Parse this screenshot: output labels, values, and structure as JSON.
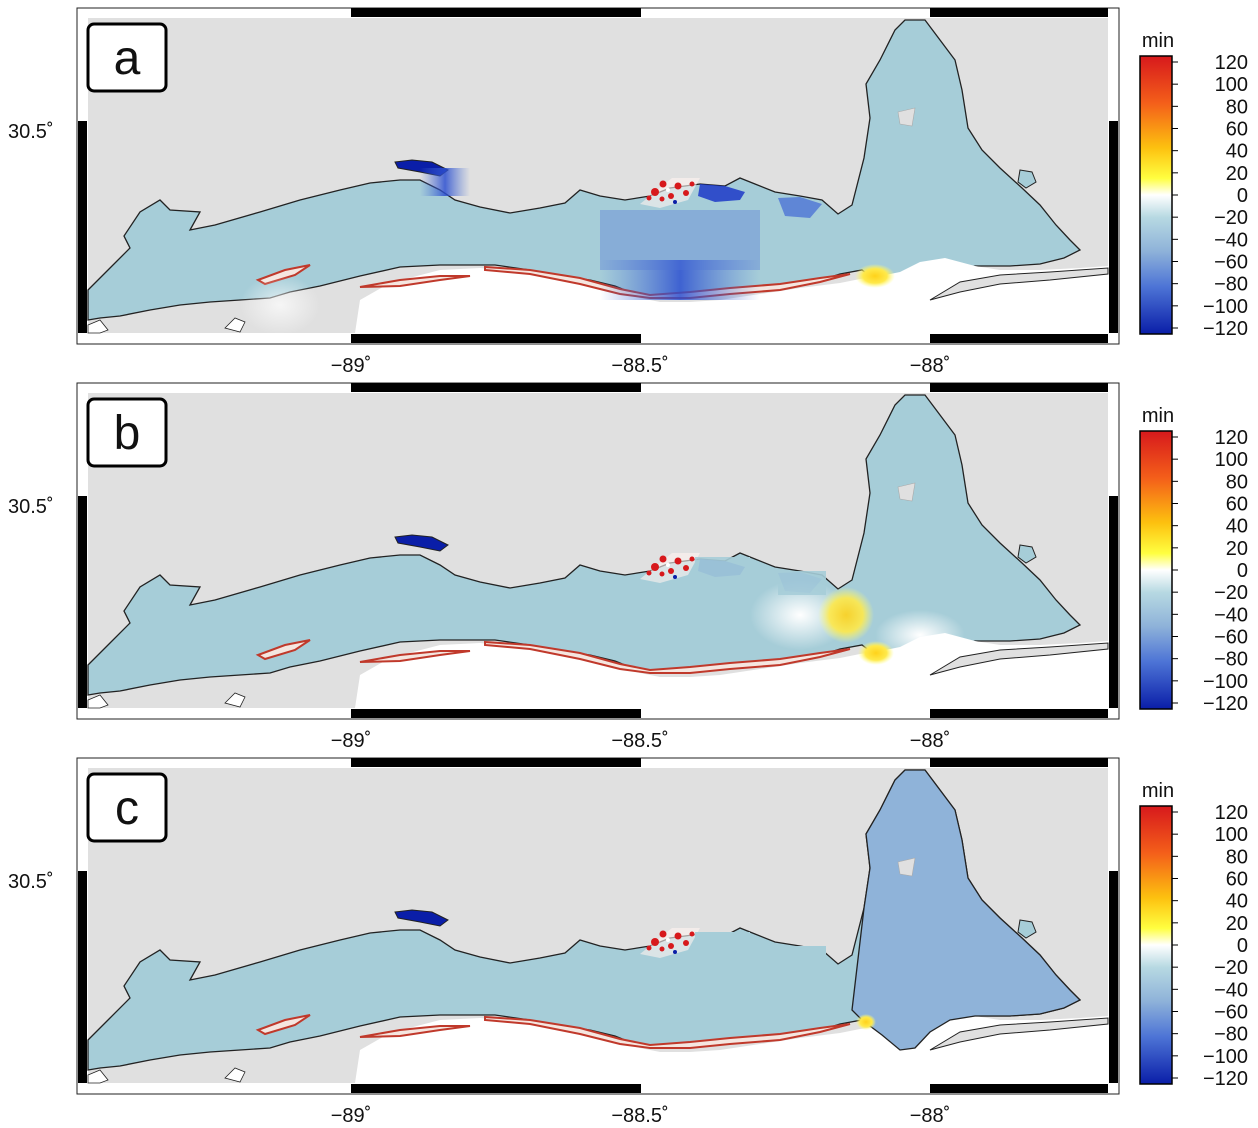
{
  "figure": {
    "panels": [
      {
        "letter": "a",
        "colorbar_unit": "min"
      },
      {
        "letter": "b",
        "colorbar_unit": "min"
      },
      {
        "letter": "c",
        "colorbar_unit": "min"
      }
    ],
    "lon_ticks": [
      "−89˚",
      "−88.5˚",
      "−88˚"
    ],
    "lat_tick": "30.5˚",
    "colorbar_ticks": [
      "120",
      "100",
      "80",
      "60",
      "40",
      "20",
      "0",
      "−20",
      "−40",
      "−60",
      "−80",
      "−100",
      "−120"
    ],
    "colors": {
      "land": "#e0e0e0",
      "water_base": "#a6cdd8",
      "bay_c": "#8fb3d9",
      "negative_strong": "#0a1ea8",
      "positive_strong": "#d7191c"
    }
  }
}
